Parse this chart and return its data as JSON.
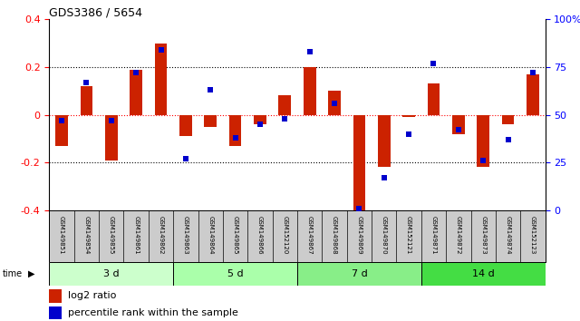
{
  "title": "GDS3386 / 5654",
  "samples": [
    "GSM149851",
    "GSM149854",
    "GSM149855",
    "GSM149861",
    "GSM149862",
    "GSM149863",
    "GSM149864",
    "GSM149865",
    "GSM149866",
    "GSM152120",
    "GSM149867",
    "GSM149868",
    "GSM149869",
    "GSM149870",
    "GSM152121",
    "GSM149871",
    "GSM149872",
    "GSM149873",
    "GSM149874",
    "GSM152123"
  ],
  "log2_ratio": [
    -0.13,
    0.12,
    -0.19,
    0.19,
    0.3,
    -0.09,
    -0.05,
    -0.13,
    -0.04,
    0.08,
    0.2,
    0.1,
    -0.4,
    -0.22,
    -0.01,
    0.13,
    -0.08,
    -0.22,
    -0.04,
    0.17
  ],
  "percentile": [
    47,
    67,
    47,
    72,
    84,
    27,
    63,
    38,
    45,
    48,
    83,
    56,
    1,
    17,
    40,
    77,
    42,
    26,
    37,
    72
  ],
  "groups": [
    {
      "label": "3 d",
      "start": 0,
      "end": 5,
      "color": "#ccffcc"
    },
    {
      "label": "5 d",
      "start": 5,
      "end": 10,
      "color": "#aaffaa"
    },
    {
      "label": "7 d",
      "start": 10,
      "end": 15,
      "color": "#88ee88"
    },
    {
      "label": "14 d",
      "start": 15,
      "end": 20,
      "color": "#44dd44"
    }
  ],
  "ylim": [
    -0.4,
    0.4
  ],
  "y2lim": [
    0,
    100
  ],
  "yticks_left": [
    -0.4,
    -0.2,
    0.0,
    0.2,
    0.4
  ],
  "yticks_right": [
    0,
    25,
    50,
    75,
    100
  ],
  "bar_color": "#cc2200",
  "dot_color": "#0000cc",
  "bar_width": 0.5,
  "background_color": "#ffffff",
  "legend_bar_label": "log2 ratio",
  "legend_dot_label": "percentile rank within the sample",
  "label_bg": "#cccccc"
}
